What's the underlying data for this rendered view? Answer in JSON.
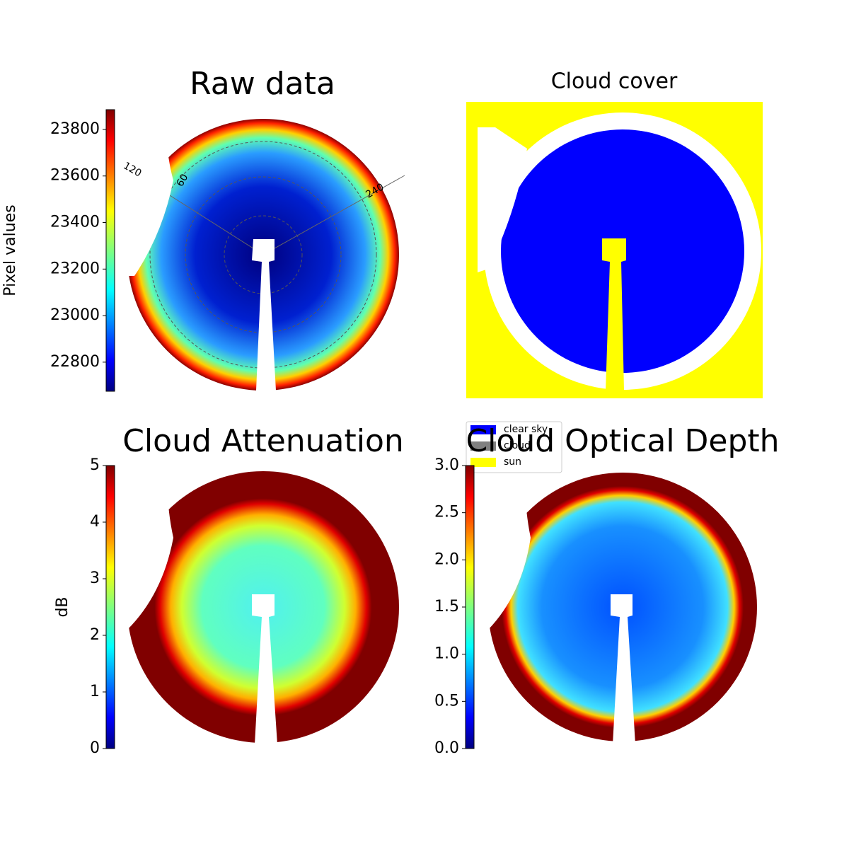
{
  "chart_data": [
    {
      "type": "image",
      "title": "Raw data",
      "colorbar_label": "Pixel values",
      "colormap": "jet",
      "ylim": [
        22675,
        23885
      ],
      "yticks": [
        22800,
        23000,
        23200,
        23400,
        23600,
        23800
      ],
      "annotations": [
        "120",
        "60",
        "240"
      ]
    },
    {
      "type": "image",
      "title": "Cloud cover",
      "series": [
        {
          "name": "clear sky",
          "color": "#0000ff"
        },
        {
          "name": "cloud",
          "color": "#808080"
        },
        {
          "name": "sun",
          "color": "#ffff00"
        }
      ]
    },
    {
      "type": "image",
      "title": "Cloud Attenuation",
      "colorbar_label": "dB",
      "colormap": "jet",
      "ylim": [
        0,
        5
      ],
      "yticks": [
        0,
        1,
        2,
        3,
        4,
        5
      ]
    },
    {
      "type": "image",
      "title": "Cloud Optical Depth",
      "colormap": "jet",
      "ylim": [
        0,
        3
      ],
      "yticks": [
        {
          "value": 0,
          "label": "0.0"
        },
        {
          "value": 0.5,
          "label": "0.5"
        },
        {
          "value": 1,
          "label": "1.0"
        },
        {
          "value": 1.5,
          "label": "1.5"
        },
        {
          "value": 2,
          "label": "2.0"
        },
        {
          "value": 2.5,
          "label": "2.5"
        },
        {
          "value": 3,
          "label": "3.0"
        }
      ]
    }
  ]
}
